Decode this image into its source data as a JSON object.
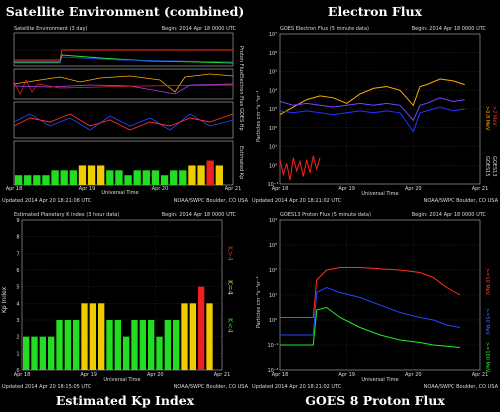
{
  "titles": {
    "satellite": "Satellite Environment (combined)",
    "electron": "Electron Flux",
    "kp": "Estimated Kp Index",
    "proton": "GOES 8 Proton Flux"
  },
  "panels": {
    "satellite": {
      "header_left": "Satellite Environment (3 day)",
      "header_right": "Begin: 2014 Apr 18 0000 UTC",
      "rows": [
        "Proton Flux",
        "Electron Flux",
        "GOES Hp",
        "Estimated Kp"
      ],
      "footer_left": "Updated 2014 Apr 20 18:21:08 UTC",
      "footer_right": "NOAA/SWPC Boulder, CO USA",
      "xlabel": "Universal Time"
    },
    "electron": {
      "header_left": "GOES Electron Flux (5 minute data)",
      "header_right": "Begin: 2014 Apr 18 0000 UTC",
      "ylabel": "Particles cm⁻²s⁻¹sr⁻¹",
      "legend": [
        ">0.8 MeV",
        ">2 MeV"
      ],
      "sat_labels": [
        "GOES15",
        "GOES13"
      ],
      "footer_left": "Updated 2014 Apr 20 18:21:02 UTC",
      "footer_right": "NOAA/SWPC Boulder, CO USA",
      "xlabel": "Universal Time"
    },
    "kp": {
      "header_left": "Estimated Planetary K index (3 hour data)",
      "header_right": "Begin: 2014 Apr 18 0000 UTC",
      "ylabel": "Kp Index",
      "legend": [
        "K<4",
        "K=4",
        "K>4"
      ],
      "footer_left": "Updated 2014 Apr 20 18:15:05 UTC",
      "footer_right": "NOAA/SWPC Boulder, CO USA",
      "xlabel": "Universal Time"
    },
    "proton": {
      "header_left": "GOES13 Proton Flux (5 minute data)",
      "header_right": "Begin: 2014 Apr 18 0000 UTC",
      "ylabel": "Particles cm⁻²s⁻¹sr⁻¹",
      "legend": [
        ">=10 MeV",
        ">=50 MeV",
        ">=100 MeV"
      ],
      "footer_left": "Updated 2014 Apr 20 18:21:02 UTC",
      "footer_right": "NOAA/SWPC Boulder, CO USA",
      "xlabel": "Universal Time"
    }
  },
  "chart_data": [
    {
      "type": "bar",
      "id": "kp-index",
      "title": "Estimated Planetary K index (3 hour data)",
      "ylabel": "Kp Index",
      "xlabel": "Universal Time",
      "ylim": [
        0,
        9
      ],
      "x_ticks": [
        "Apr 18",
        "Apr 19",
        "Apr 20",
        "Apr 21"
      ],
      "y_ticks": [
        "0",
        "1",
        "2",
        "3",
        "4",
        "5",
        "6",
        "7",
        "8",
        "9"
      ],
      "values": [
        2,
        2,
        2,
        2,
        3,
        3,
        3,
        4,
        4,
        4,
        3,
        3,
        2,
        3,
        3,
        3,
        2,
        3,
        3,
        4,
        4,
        5,
        4
      ],
      "colors": {
        "below4": "#22dd22",
        "eq4": "#eecc00",
        "above4": "#ee2020"
      },
      "grid": true
    },
    {
      "type": "line",
      "id": "electron-flux",
      "title": "GOES Electron Flux (5 minute data)",
      "xlabel": "Universal Time",
      "ylabel": "Particles cm⁻²s⁻¹sr⁻¹",
      "yscale": "log",
      "y_ticks": [
        "10⁻¹",
        "10⁰",
        "10¹",
        "10²",
        "10³",
        "10⁴",
        "10⁵",
        "10⁶",
        "10⁷"
      ],
      "x_ticks": [
        "Apr 18",
        "Apr 19",
        "Apr 20",
        "Apr 21"
      ],
      "xlim": [
        0,
        3
      ],
      "series": [
        {
          "name": ">0.8 MeV",
          "color": "#ffaa00",
          "x": [
            0,
            0.2,
            0.4,
            0.6,
            0.8,
            1.0,
            1.2,
            1.4,
            1.6,
            1.8,
            2.0,
            2.1,
            2.2,
            2.4,
            2.6,
            2.77
          ],
          "y": [
            2.7,
            3.1,
            3.5,
            3.7,
            3.6,
            3.3,
            3.8,
            4.1,
            4.2,
            4.0,
            3.2,
            4.2,
            4.3,
            4.6,
            4.5,
            4.3
          ]
        },
        {
          "name": ">0.8 MeV",
          "color": "#7744ff",
          "x": [
            0,
            0.2,
            0.4,
            0.6,
            0.8,
            1.0,
            1.2,
            1.4,
            1.6,
            1.8,
            2.0,
            2.1,
            2.2,
            2.4,
            2.6,
            2.77
          ],
          "y": [
            3.4,
            3.2,
            3.3,
            3.2,
            3.1,
            3.2,
            3.3,
            3.2,
            3.3,
            3.2,
            2.4,
            3.2,
            3.3,
            3.6,
            3.4,
            3.5
          ]
        },
        {
          "name": ">2 MeV",
          "color": "#2233ff",
          "x": [
            0,
            0.2,
            0.4,
            0.6,
            0.8,
            1.0,
            1.2,
            1.4,
            1.6,
            1.8,
            2.0,
            2.1,
            2.2,
            2.4,
            2.6,
            2.77
          ],
          "y": [
            2.9,
            2.8,
            2.9,
            2.8,
            2.7,
            2.8,
            2.9,
            2.8,
            2.9,
            2.8,
            1.8,
            2.8,
            2.9,
            3.1,
            2.9,
            3.0
          ]
        },
        {
          "name": ">2 MeV",
          "color": "#ff2020",
          "x": [
            0,
            0.05,
            0.1,
            0.15,
            0.2,
            0.25,
            0.3,
            0.35,
            0.4,
            0.45,
            0.5,
            0.55,
            0.6
          ],
          "y": [
            0.3,
            -0.5,
            0.1,
            -0.8,
            0.4,
            -0.3,
            0.2,
            -0.6,
            0.3,
            -0.4,
            0.5,
            -0.2,
            0.4
          ]
        }
      ],
      "grid": true
    },
    {
      "type": "line",
      "id": "proton-flux",
      "title": "GOES13 Proton Flux (5 minute data)",
      "xlabel": "Universal Time",
      "ylabel": "Particles cm⁻²s⁻¹sr⁻¹",
      "yscale": "log",
      "y_ticks": [
        "10⁻²",
        "10⁻¹",
        "10⁰",
        "10¹",
        "10²",
        "10³",
        "10⁴"
      ],
      "x_ticks": [
        "Apr 18",
        "Apr 19",
        "Apr 20",
        "Apr 21"
      ],
      "xlim": [
        0,
        3
      ],
      "series": [
        {
          "name": ">=10 MeV",
          "color": "#ff3020",
          "x": [
            0,
            0.5,
            0.55,
            0.7,
            0.9,
            1.2,
            1.5,
            1.8,
            2.1,
            2.3,
            2.5,
            2.7
          ],
          "y": [
            0.1,
            0.1,
            1.6,
            2.0,
            2.1,
            2.1,
            2.05,
            2.0,
            1.9,
            1.7,
            1.3,
            1.0
          ]
        },
        {
          "name": ">=50 MeV",
          "color": "#2244ff",
          "x": [
            0,
            0.5,
            0.55,
            0.7,
            0.9,
            1.2,
            1.5,
            1.8,
            2.1,
            2.3,
            2.5,
            2.7
          ],
          "y": [
            -0.6,
            -0.6,
            1.1,
            1.3,
            1.1,
            0.9,
            0.6,
            0.3,
            0.1,
            0.0,
            -0.2,
            -0.3
          ]
        },
        {
          "name": ">=100 MeV",
          "color": "#22ee22",
          "x": [
            0,
            0.5,
            0.55,
            0.7,
            0.9,
            1.2,
            1.5,
            1.8,
            2.1,
            2.3,
            2.5,
            2.7
          ],
          "y": [
            -1.0,
            -1.0,
            0.4,
            0.5,
            0.1,
            -0.3,
            -0.6,
            -0.8,
            -0.9,
            -1.0,
            -1.05,
            -1.1
          ]
        }
      ],
      "grid": true
    },
    {
      "type": "line",
      "id": "satellite-environment",
      "title": "Satellite Environment (3 day)",
      "xlabel": "Universal Time",
      "x_ticks": [
        "Apr 18",
        "Apr 19",
        "Apr 20",
        "Apr 21"
      ],
      "kp_values": [
        2,
        2,
        2,
        2,
        3,
        3,
        3,
        4,
        4,
        4,
        3,
        3,
        2,
        3,
        3,
        3,
        2,
        3,
        3,
        4,
        4,
        5,
        4
      ]
    }
  ]
}
